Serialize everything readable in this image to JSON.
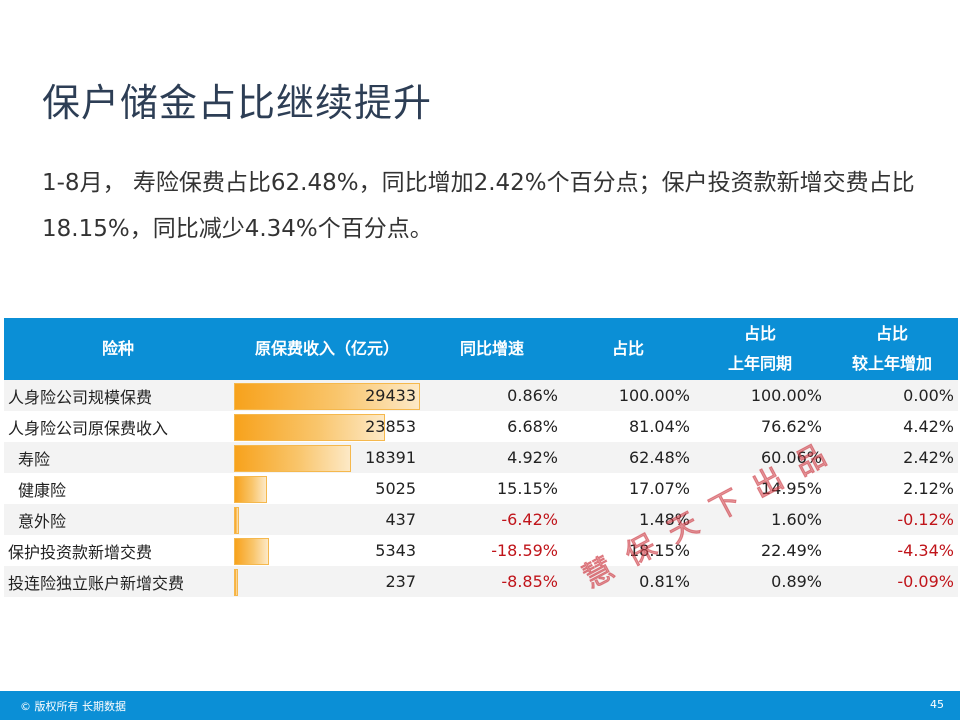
{
  "title": "保户储金占比继续提升",
  "subtitle": "1-8月， 寿险保费占比62.48%，同比增加2.42%个百分点；保户投资款新增交费占比18.15%，同比减少4.34%个百分点。",
  "table": {
    "headers": {
      "type": "险种",
      "premium": "原保费收入（亿元）",
      "yoy": "同比增速",
      "share": "占比",
      "share_last_line1": "占比",
      "share_last_line2": "上年同期",
      "share_delta_line1": "占比",
      "share_delta_line2": "较上年增加"
    },
    "rows": [
      {
        "type": "人身险公司规模保费",
        "premium": "29433",
        "premium_value": 29433,
        "yoy": "0.86%",
        "share": "100.00%",
        "share_last": "100.00%",
        "share_delta": "0.00%"
      },
      {
        "type": "人身险公司原保费收入",
        "premium": "23853",
        "premium_value": 23853,
        "yoy": "6.68%",
        "share": "81.04%",
        "share_last": "76.62%",
        "share_delta": "4.42%"
      },
      {
        "type": "寿险",
        "premium": "18391",
        "premium_value": 18391,
        "yoy": "4.92%",
        "share": "62.48%",
        "share_last": "60.06%",
        "share_delta": "2.42%"
      },
      {
        "type": "健康险",
        "premium": "5025",
        "premium_value": 5025,
        "yoy": "15.15%",
        "share": "17.07%",
        "share_last": "14.95%",
        "share_delta": "2.12%"
      },
      {
        "type": "意外险",
        "premium": "437",
        "premium_value": 437,
        "yoy": "-6.42%",
        "share": "1.48%",
        "share_last": "1.60%",
        "share_delta": "-0.12%"
      },
      {
        "type": "保护投资款新增交费",
        "premium": "5343",
        "premium_value": 5343,
        "yoy": "-18.59%",
        "share": "18.15%",
        "share_last": "22.49%",
        "share_delta": "-4.34%"
      },
      {
        "type": "投连险独立账户新增交费",
        "premium": "237",
        "premium_value": 237,
        "yoy": "-8.85%",
        "share": "0.81%",
        "share_last": "0.89%",
        "share_delta": "-0.09%"
      }
    ]
  },
  "watermark": "慧保天下出品",
  "footer": {
    "copyright": "© 版权所有 长期数据",
    "page_number": "45"
  },
  "colors": {
    "accent": "#0b8fd6",
    "bar": "#f7a21c",
    "negative": "#c0141a",
    "title": "#2d3e55"
  }
}
